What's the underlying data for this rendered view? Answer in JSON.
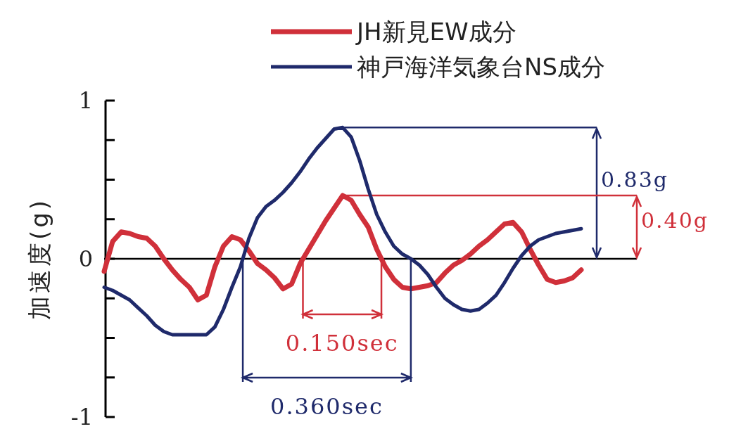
{
  "chart_data": {
    "type": "line",
    "ylabel": "加速度(g)",
    "legend": "top",
    "grid": false,
    "line_style": "solid",
    "categories": [
      null,
      null,
      null,
      null,
      null,
      null,
      null,
      null,
      null,
      null,
      null,
      null,
      null,
      null,
      null,
      null,
      null,
      null,
      null,
      null,
      null,
      null,
      null,
      null,
      null,
      null,
      null,
      null,
      null,
      null,
      null,
      null,
      null,
      null,
      null,
      null,
      null,
      null,
      null,
      null,
      null,
      null,
      null,
      null,
      null,
      null,
      null,
      null,
      null,
      null,
      null,
      null,
      null,
      null,
      null,
      null,
      null
    ],
    "ylim": [
      -1,
      1
    ],
    "yticks": [
      {
        "value": -1,
        "label": "-1"
      },
      {
        "value": -0.75,
        "label": null
      },
      {
        "value": -0.5,
        "label": null
      },
      {
        "value": -0.25,
        "label": null
      },
      0,
      {
        "value": 0.25,
        "label": null
      },
      {
        "value": 0.5,
        "label": null
      },
      {
        "value": 0.75,
        "label": null
      },
      1
    ],
    "tick_labels": "y",
    "series": [
      {
        "name": "JH新見EW成分",
        "color": "#d0303a",
        "values": [
          -0.08,
          0.11,
          0.17,
          0.16,
          0.14,
          0.13,
          0.08,
          0.0,
          -0.07,
          -0.13,
          -0.18,
          -0.26,
          -0.23,
          -0.05,
          0.08,
          0.14,
          0.12,
          0.05,
          -0.03,
          -0.07,
          -0.12,
          -0.19,
          -0.16,
          -0.03,
          0.06,
          0.15,
          0.24,
          0.32,
          0.4,
          0.37,
          0.28,
          0.2,
          0.06,
          -0.05,
          -0.13,
          -0.18,
          -0.19,
          -0.18,
          -0.17,
          -0.15,
          -0.09,
          -0.04,
          -0.01,
          0.03,
          0.08,
          0.12,
          0.17,
          0.22,
          0.23,
          0.17,
          0.06,
          -0.04,
          -0.13,
          -0.15,
          -0.14,
          -0.12,
          -0.07
        ]
      },
      {
        "name": "神戸海洋気象台NS成分",
        "color": "#1f2a6b",
        "values": [
          -0.18,
          -0.2,
          -0.23,
          -0.26,
          -0.31,
          -0.36,
          -0.42,
          -0.46,
          -0.48,
          -0.48,
          -0.48,
          -0.48,
          -0.48,
          -0.43,
          -0.32,
          -0.18,
          -0.05,
          0.13,
          0.26,
          0.33,
          0.37,
          0.42,
          0.48,
          0.55,
          0.63,
          0.7,
          0.76,
          0.82,
          0.83,
          0.77,
          0.62,
          0.44,
          0.28,
          0.17,
          0.08,
          0.03,
          0.0,
          -0.04,
          -0.1,
          -0.18,
          -0.25,
          -0.29,
          -0.32,
          -0.33,
          -0.32,
          -0.28,
          -0.23,
          -0.15,
          -0.06,
          0.02,
          0.08,
          0.12,
          0.14,
          0.16,
          0.17,
          0.18,
          0.19
        ]
      }
    ],
    "ref_lines": [
      {
        "axis": "y",
        "value": 0,
        "color": "#000000"
      },
      {
        "axis": "y",
        "value": 0.83,
        "label": "0.83g",
        "color": "#1f2a6b"
      },
      {
        "axis": "y",
        "value": 0.4,
        "label": "0.40g",
        "color": "#d0303a"
      }
    ],
    "annotations": [
      "0.150sec",
      "0.360sec"
    ]
  }
}
